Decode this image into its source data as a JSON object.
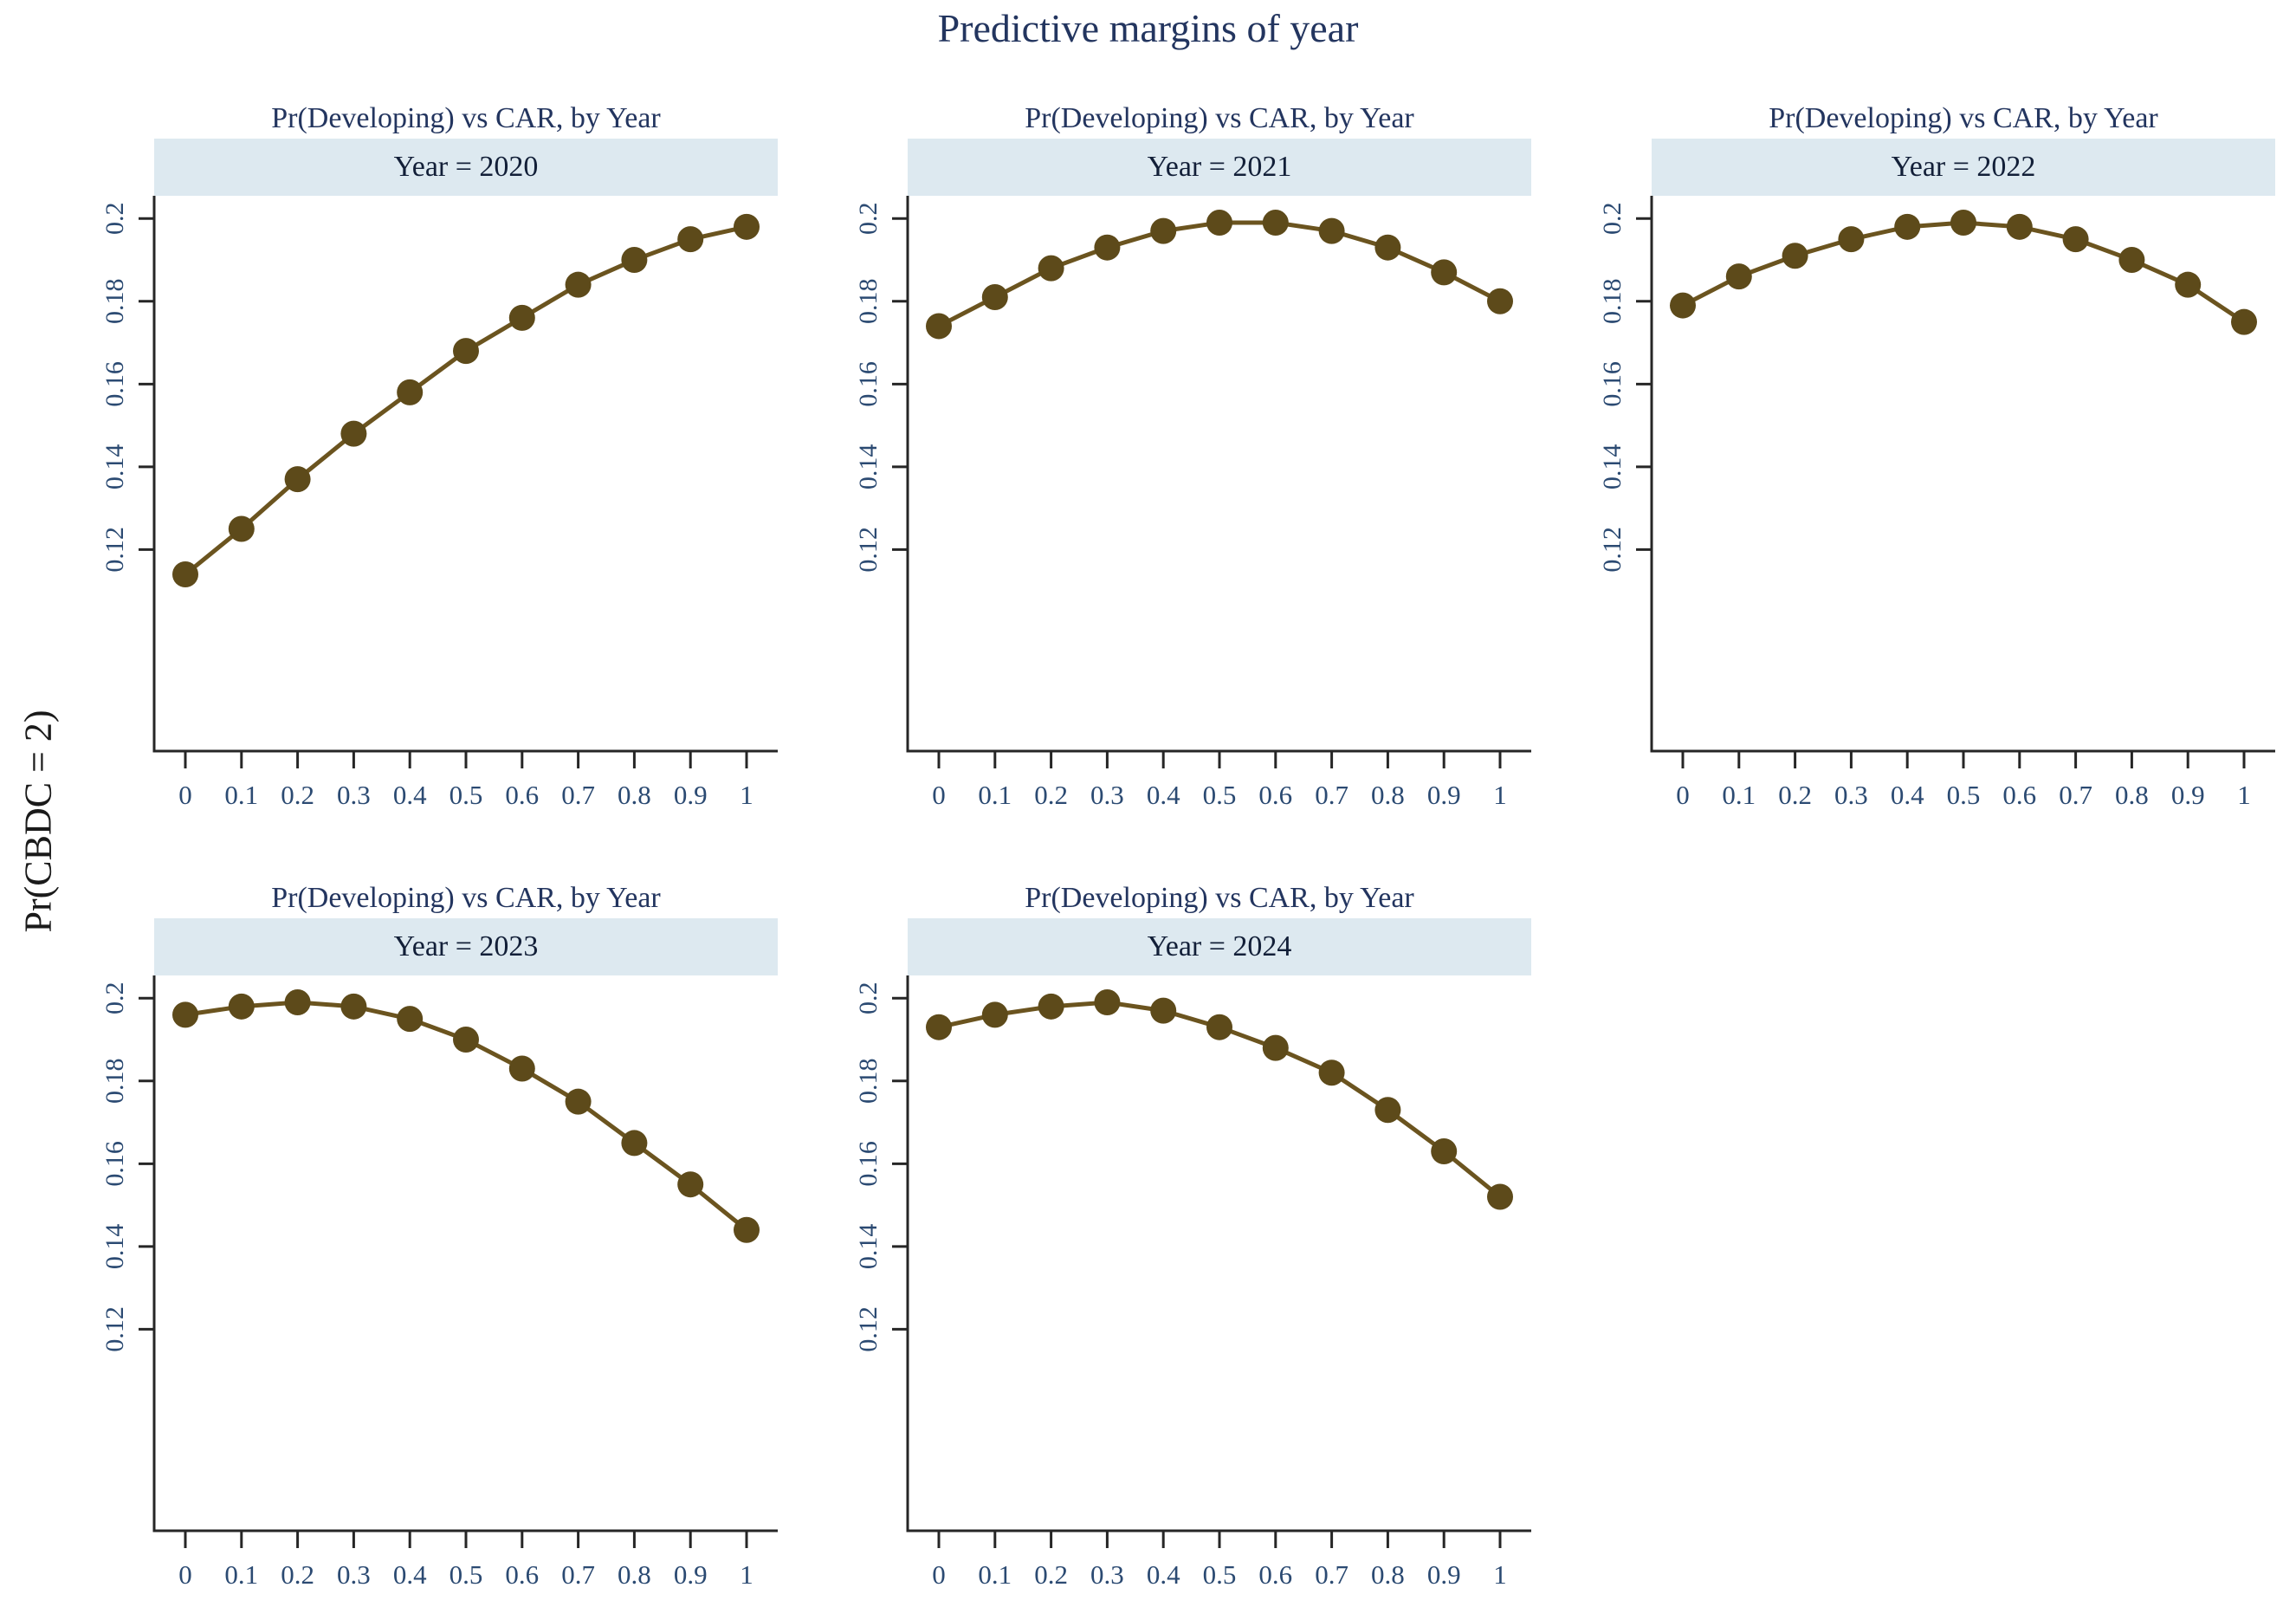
{
  "figure": {
    "title": "Predictive margins of year",
    "y_axis_label": "Pr(CBDC = 2)"
  },
  "style": {
    "title_color": "#23355f",
    "facet_header_bg": "#dde9f0",
    "facet_header_text": "#121f38",
    "tick_label_color": "#2b4a72",
    "axis_color": "#262626",
    "marker_color": "#5d4a1a",
    "line_color": "#6b541f"
  },
  "chart_data": [
    {
      "type": "line",
      "title": "Pr(Developing) vs CAR, by Year",
      "facet_label": "Year = 2020",
      "x": [
        0,
        0.1,
        0.2,
        0.3,
        0.4,
        0.5,
        0.6,
        0.7,
        0.8,
        0.9,
        1
      ],
      "values": [
        0.114,
        0.125,
        0.137,
        0.148,
        0.158,
        0.168,
        0.176,
        0.184,
        0.19,
        0.195,
        0.198
      ],
      "x_tick_labels": [
        "0",
        "0.1",
        "0.2",
        "0.3",
        "0.4",
        "0.5",
        "0.6",
        "0.7",
        "0.8",
        "0.9",
        "1"
      ],
      "y_tick_labels": [
        "0.2",
        "0.18",
        "0.16",
        "0.14",
        "0.12"
      ],
      "yticks": [
        0.2,
        0.18,
        0.16,
        0.14,
        0.12
      ],
      "ylim": [
        0.0715,
        0.2055
      ],
      "grid": false,
      "legend": "none"
    },
    {
      "type": "line",
      "title": "Pr(Developing) vs CAR, by Year",
      "facet_label": "Year = 2021",
      "x": [
        0,
        0.1,
        0.2,
        0.3,
        0.4,
        0.5,
        0.6,
        0.7,
        0.8,
        0.9,
        1
      ],
      "values": [
        0.174,
        0.181,
        0.188,
        0.193,
        0.197,
        0.199,
        0.199,
        0.197,
        0.193,
        0.187,
        0.18
      ],
      "x_tick_labels": [
        "0",
        "0.1",
        "0.2",
        "0.3",
        "0.4",
        "0.5",
        "0.6",
        "0.7",
        "0.8",
        "0.9",
        "1"
      ],
      "y_tick_labels": [
        "0.2",
        "0.18",
        "0.16",
        "0.14",
        "0.12"
      ],
      "yticks": [
        0.2,
        0.18,
        0.16,
        0.14,
        0.12
      ],
      "ylim": [
        0.0715,
        0.2055
      ],
      "grid": false,
      "legend": "none"
    },
    {
      "type": "line",
      "title": "Pr(Developing) vs CAR, by Year",
      "facet_label": "Year = 2022",
      "x": [
        0,
        0.1,
        0.2,
        0.3,
        0.4,
        0.5,
        0.6,
        0.7,
        0.8,
        0.9,
        1
      ],
      "values": [
        0.179,
        0.186,
        0.191,
        0.195,
        0.198,
        0.199,
        0.198,
        0.195,
        0.19,
        0.184,
        0.175
      ],
      "x_tick_labels": [
        "0",
        "0.1",
        "0.2",
        "0.3",
        "0.4",
        "0.5",
        "0.6",
        "0.7",
        "0.8",
        "0.9",
        "1"
      ],
      "y_tick_labels": [
        "0.2",
        "0.18",
        "0.16",
        "0.14",
        "0.12"
      ],
      "yticks": [
        0.2,
        0.18,
        0.16,
        0.14,
        0.12
      ],
      "ylim": [
        0.0715,
        0.2055
      ],
      "grid": false,
      "legend": "none"
    },
    {
      "type": "line",
      "title": "Pr(Developing) vs CAR, by Year",
      "facet_label": "Year = 2023",
      "x": [
        0,
        0.1,
        0.2,
        0.3,
        0.4,
        0.5,
        0.6,
        0.7,
        0.8,
        0.9,
        1
      ],
      "values": [
        0.196,
        0.198,
        0.199,
        0.198,
        0.195,
        0.19,
        0.183,
        0.175,
        0.165,
        0.155,
        0.144
      ],
      "x_tick_labels": [
        "0",
        "0.1",
        "0.2",
        "0.3",
        "0.4",
        "0.5",
        "0.6",
        "0.7",
        "0.8",
        "0.9",
        "1"
      ],
      "y_tick_labels": [
        "0.2",
        "0.18",
        "0.16",
        "0.14",
        "0.12"
      ],
      "yticks": [
        0.2,
        0.18,
        0.16,
        0.14,
        0.12
      ],
      "ylim": [
        0.0715,
        0.2055
      ],
      "grid": false,
      "legend": "none"
    },
    {
      "type": "line",
      "title": "Pr(Developing) vs CAR, by Year",
      "facet_label": "Year = 2024",
      "x": [
        0,
        0.1,
        0.2,
        0.3,
        0.4,
        0.5,
        0.6,
        0.7,
        0.8,
        0.9,
        1
      ],
      "values": [
        0.193,
        0.196,
        0.198,
        0.199,
        0.197,
        0.193,
        0.188,
        0.182,
        0.173,
        0.163,
        0.152
      ],
      "x_tick_labels": [
        "0",
        "0.1",
        "0.2",
        "0.3",
        "0.4",
        "0.5",
        "0.6",
        "0.7",
        "0.8",
        "0.9",
        "1"
      ],
      "y_tick_labels": [
        "0.2",
        "0.18",
        "0.16",
        "0.14",
        "0.12"
      ],
      "yticks": [
        0.2,
        0.18,
        0.16,
        0.14,
        0.12
      ],
      "ylim": [
        0.0715,
        0.2055
      ],
      "grid": false,
      "legend": "none"
    }
  ]
}
